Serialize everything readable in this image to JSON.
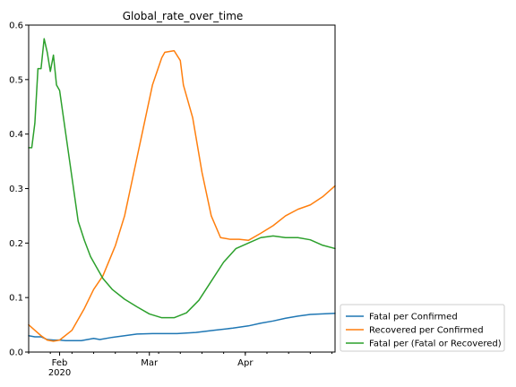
{
  "chart_data": {
    "type": "line",
    "title": "Global_rate_over_time",
    "xlabel": "",
    "ylabel": "",
    "xlim": [
      "2020-01-22",
      "2020-04-30"
    ],
    "ylim": [
      0.0,
      0.6
    ],
    "grid": false,
    "legend_position": "outside-lower-right",
    "y_ticks": [
      0.0,
      0.1,
      0.2,
      0.3,
      0.4,
      0.5,
      0.6
    ],
    "y_tick_labels": [
      "0.0",
      "0.1",
      "0.2",
      "0.3",
      "0.4",
      "0.5",
      "0.6"
    ],
    "x_ticks": [
      {
        "date": "2020-02-01",
        "label": "Feb",
        "sublabel": "2020"
      },
      {
        "date": "2020-03-01",
        "label": "Mar",
        "sublabel": ""
      },
      {
        "date": "2020-04-01",
        "label": "Apr",
        "sublabel": ""
      }
    ],
    "series": [
      {
        "name": "Fatal per Confirmed",
        "color": "#1f77b4",
        "x": [
          "2020-01-22",
          "2020-01-24",
          "2020-01-26",
          "2020-01-28",
          "2020-01-30",
          "2020-02-01",
          "2020-02-03",
          "2020-02-05",
          "2020-02-08",
          "2020-02-12",
          "2020-02-14",
          "2020-02-18",
          "2020-02-22",
          "2020-02-26",
          "2020-03-02",
          "2020-03-06",
          "2020-03-10",
          "2020-03-16",
          "2020-03-22",
          "2020-03-28",
          "2020-04-02",
          "2020-04-06",
          "2020-04-10",
          "2020-04-14",
          "2020-04-18",
          "2020-04-22",
          "2020-04-26",
          "2020-04-30"
        ],
        "y": [
          0.03,
          0.028,
          0.028,
          0.023,
          0.022,
          0.022,
          0.021,
          0.021,
          0.021,
          0.025,
          0.023,
          0.027,
          0.03,
          0.033,
          0.034,
          0.034,
          0.034,
          0.036,
          0.04,
          0.044,
          0.048,
          0.053,
          0.057,
          0.062,
          0.066,
          0.069,
          0.07,
          0.071
        ]
      },
      {
        "name": "Recovered per Confirmed",
        "color": "#ff7f0e",
        "x": [
          "2020-01-22",
          "2020-01-24",
          "2020-01-26",
          "2020-01-28",
          "2020-01-30",
          "2020-02-01",
          "2020-02-05",
          "2020-02-09",
          "2020-02-12",
          "2020-02-15",
          "2020-02-19",
          "2020-02-22",
          "2020-02-25",
          "2020-02-28",
          "2020-03-02",
          "2020-03-05",
          "2020-03-06",
          "2020-03-09",
          "2020-03-11",
          "2020-03-12",
          "2020-03-15",
          "2020-03-18",
          "2020-03-21",
          "2020-03-24",
          "2020-03-27",
          "2020-03-30",
          "2020-04-02",
          "2020-04-06",
          "2020-04-10",
          "2020-04-14",
          "2020-04-18",
          "2020-04-22",
          "2020-04-26",
          "2020-04-30"
        ],
        "y": [
          0.05,
          0.04,
          0.03,
          0.022,
          0.02,
          0.022,
          0.04,
          0.08,
          0.115,
          0.14,
          0.195,
          0.25,
          0.33,
          0.41,
          0.49,
          0.54,
          0.55,
          0.553,
          0.535,
          0.49,
          0.43,
          0.33,
          0.25,
          0.21,
          0.207,
          0.207,
          0.205,
          0.218,
          0.232,
          0.25,
          0.262,
          0.27,
          0.285,
          0.305
        ]
      },
      {
        "name": "Fatal per (Fatal or Recovered)",
        "color": "#2ca02c",
        "x": [
          "2020-01-22",
          "2020-01-23",
          "2020-01-24",
          "2020-01-25",
          "2020-01-26",
          "2020-01-27",
          "2020-01-28",
          "2020-01-29",
          "2020-01-30",
          "2020-01-31",
          "2020-02-01",
          "2020-02-02",
          "2020-02-03",
          "2020-02-05",
          "2020-02-07",
          "2020-02-09",
          "2020-02-11",
          "2020-02-13",
          "2020-02-15",
          "2020-02-18",
          "2020-02-22",
          "2020-02-26",
          "2020-03-01",
          "2020-03-05",
          "2020-03-09",
          "2020-03-13",
          "2020-03-17",
          "2020-03-21",
          "2020-03-25",
          "2020-03-29",
          "2020-04-02",
          "2020-04-06",
          "2020-04-10",
          "2020-04-14",
          "2020-04-18",
          "2020-04-22",
          "2020-04-26",
          "2020-04-30"
        ],
        "y": [
          0.375,
          0.375,
          0.42,
          0.52,
          0.52,
          0.575,
          0.55,
          0.515,
          0.545,
          0.49,
          0.48,
          0.44,
          0.4,
          0.32,
          0.24,
          0.205,
          0.175,
          0.155,
          0.135,
          0.115,
          0.097,
          0.083,
          0.07,
          0.063,
          0.063,
          0.072,
          0.095,
          0.13,
          0.165,
          0.19,
          0.2,
          0.21,
          0.213,
          0.21,
          0.21,
          0.206,
          0.196,
          0.19
        ]
      }
    ]
  }
}
